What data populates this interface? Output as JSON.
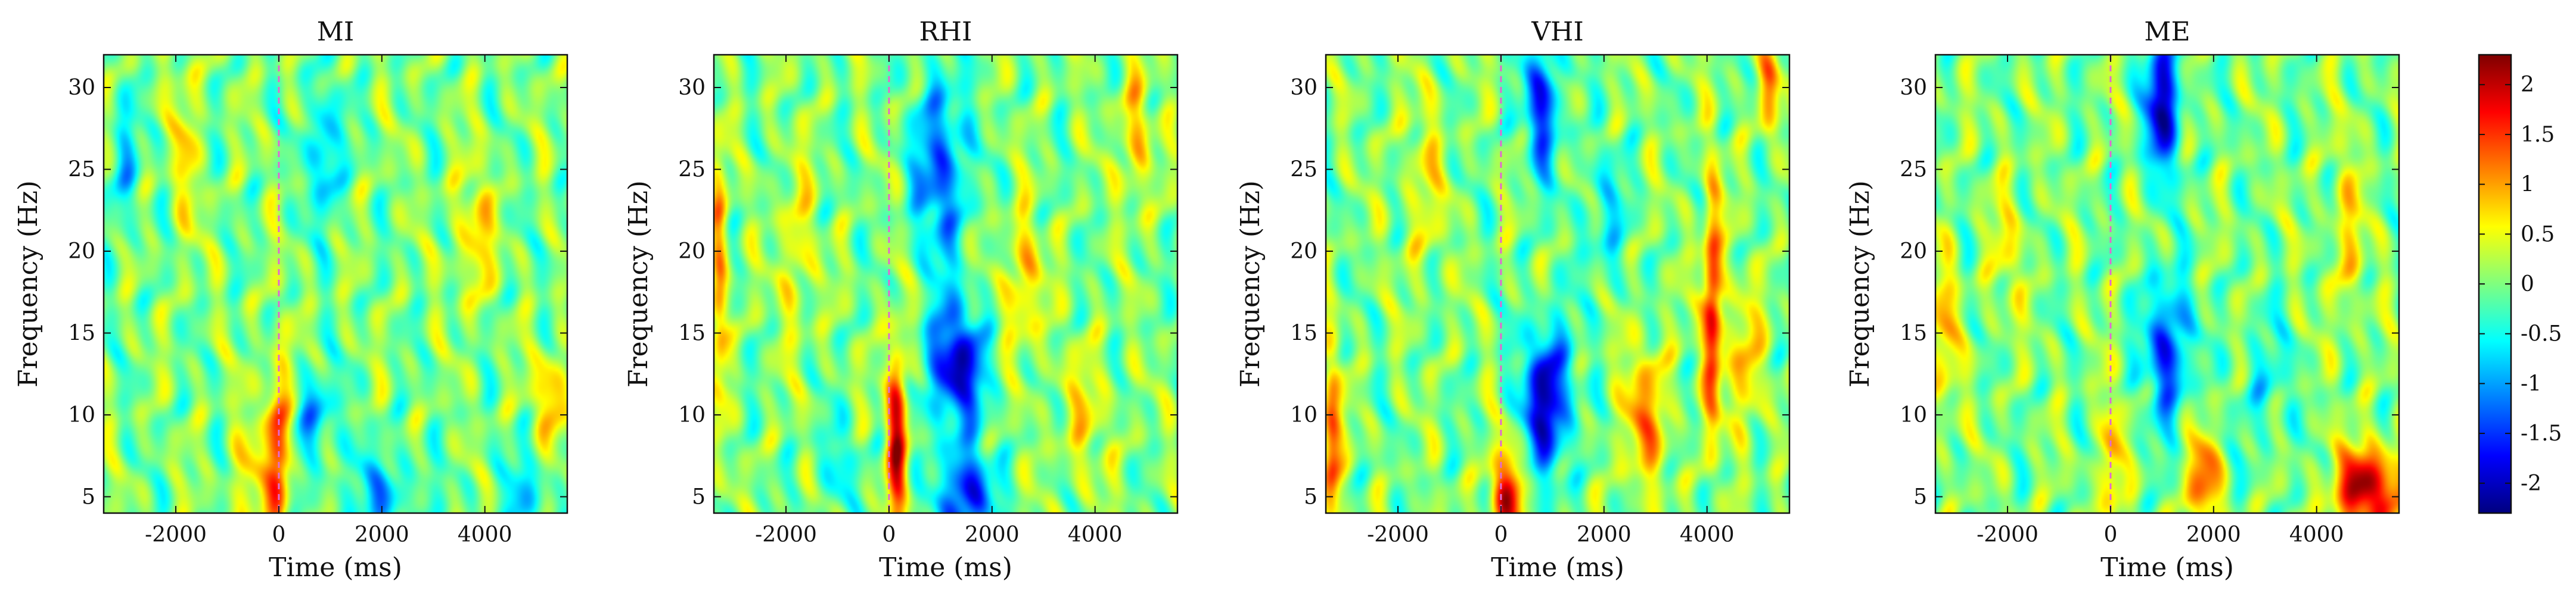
{
  "chart_data": [
    {
      "type": "heatmap",
      "title": "MI",
      "xlabel": "Time (ms)",
      "ylabel": "Frequency (Hz)",
      "xlim": [
        -3400,
        5600
      ],
      "ylim": [
        4,
        32
      ],
      "xticks": [
        -2000,
        0,
        2000,
        4000
      ],
      "xtick_labels": [
        "-2000",
        "0",
        "2000",
        "4000"
      ],
      "yticks": [
        5,
        10,
        15,
        20,
        25,
        30
      ],
      "ytick_labels": [
        "5",
        "10",
        "15",
        "20",
        "25",
        "30"
      ],
      "event_marker_time": 0,
      "features": [
        {
          "t": 0,
          "f": 8,
          "v": 1.6,
          "st": 160,
          "sf": 4
        },
        {
          "t": -600,
          "f": 6,
          "v": 0.6,
          "st": 250,
          "sf": 3
        },
        {
          "t": 900,
          "f": 26,
          "v": -1.1,
          "st": 200,
          "sf": 3
        },
        {
          "t": 700,
          "f": 10,
          "v": -0.9,
          "st": 300,
          "sf": 2
        },
        {
          "t": 2000,
          "f": 5,
          "v": -0.8,
          "st": 500,
          "sf": 2
        },
        {
          "t": 3800,
          "f": 21,
          "v": 0.8,
          "st": 250,
          "sf": 3
        },
        {
          "t": 5300,
          "f": 11,
          "v": 0.9,
          "st": 250,
          "sf": 2
        },
        {
          "t": -1800,
          "f": 26,
          "v": 0.6,
          "st": 200,
          "sf": 4
        },
        {
          "t": -3000,
          "f": 25,
          "v": -0.7,
          "st": 200,
          "sf": 3
        },
        {
          "t": 4800,
          "f": 5,
          "v": -0.6,
          "st": 400,
          "sf": 2
        }
      ]
    },
    {
      "type": "heatmap",
      "title": "RHI",
      "xlabel": "Time (ms)",
      "ylabel": "Frequency (Hz)",
      "xlim": [
        -3400,
        5600
      ],
      "ylim": [
        4,
        32
      ],
      "xticks": [
        -2000,
        0,
        2000,
        4000
      ],
      "xtick_labels": [
        "-2000",
        "0",
        "2000",
        "4000"
      ],
      "yticks": [
        5,
        10,
        15,
        20,
        25,
        30
      ],
      "ytick_labels": [
        "5",
        "10",
        "15",
        "20",
        "25",
        "30"
      ],
      "event_marker_time": 0,
      "features": [
        {
          "t": 150,
          "f": 9,
          "v": 2.0,
          "st": 140,
          "sf": 4
        },
        {
          "t": 1300,
          "f": 13,
          "v": -2.0,
          "st": 400,
          "sf": 2.5
        },
        {
          "t": 1500,
          "f": 5,
          "v": -1.8,
          "st": 350,
          "sf": 2
        },
        {
          "t": 1000,
          "f": 25,
          "v": -1.4,
          "st": 350,
          "sf": 4
        },
        {
          "t": 2600,
          "f": 18,
          "v": 0.9,
          "st": 250,
          "sf": 3
        },
        {
          "t": 3800,
          "f": 10,
          "v": 0.5,
          "st": 400,
          "sf": 3
        },
        {
          "t": -3300,
          "f": 18,
          "v": 1.2,
          "st": 120,
          "sf": 5
        },
        {
          "t": 4800,
          "f": 27,
          "v": 0.9,
          "st": 200,
          "sf": 3
        },
        {
          "t": -1800,
          "f": 20,
          "v": 0.6,
          "st": 250,
          "sf": 4
        },
        {
          "t": -1000,
          "f": 7,
          "v": -0.5,
          "st": 300,
          "sf": 2
        }
      ]
    },
    {
      "type": "heatmap",
      "title": "VHI",
      "xlabel": "Time (ms)",
      "ylabel": "Frequency (Hz)",
      "xlim": [
        -3400,
        5600
      ],
      "ylim": [
        4,
        32
      ],
      "xticks": [
        -2000,
        0,
        2000,
        4000
      ],
      "xtick_labels": [
        "-2000",
        "0",
        "2000",
        "4000"
      ],
      "yticks": [
        5,
        10,
        15,
        20,
        25,
        30
      ],
      "ytick_labels": [
        "5",
        "10",
        "15",
        "20",
        "25",
        "30"
      ],
      "event_marker_time": 0,
      "features": [
        {
          "t": 900,
          "f": 11,
          "v": -2.1,
          "st": 330,
          "sf": 3
        },
        {
          "t": 800,
          "f": 29,
          "v": -1.5,
          "st": 250,
          "sf": 3
        },
        {
          "t": 100,
          "f": 5,
          "v": 1.8,
          "st": 220,
          "sf": 2
        },
        {
          "t": 4100,
          "f": 17,
          "v": 1.8,
          "st": 130,
          "sf": 5
        },
        {
          "t": 2800,
          "f": 10,
          "v": 1.0,
          "st": 350,
          "sf": 3
        },
        {
          "t": -3300,
          "f": 8,
          "v": 1.5,
          "st": 130,
          "sf": 4
        },
        {
          "t": 4700,
          "f": 13,
          "v": 0.9,
          "st": 250,
          "sf": 3
        },
        {
          "t": 5200,
          "f": 30,
          "v": 1.1,
          "st": 150,
          "sf": 2
        },
        {
          "t": -1500,
          "f": 24,
          "v": 0.5,
          "st": 300,
          "sf": 4
        },
        {
          "t": 2000,
          "f": 22,
          "v": -0.6,
          "st": 300,
          "sf": 3
        }
      ]
    },
    {
      "type": "heatmap",
      "title": "ME",
      "xlabel": "Time (ms)",
      "ylabel": "Frequency (Hz)",
      "xlim": [
        -3400,
        5600
      ],
      "ylim": [
        4,
        32
      ],
      "xticks": [
        -2000,
        0,
        2000,
        4000
      ],
      "xtick_labels": [
        "-2000",
        "0",
        "2000",
        "4000"
      ],
      "yticks": [
        5,
        10,
        15,
        20,
        25,
        30
      ],
      "ytick_labels": [
        "5",
        "10",
        "15",
        "20",
        "25",
        "30"
      ],
      "event_marker_time": 0,
      "features": [
        {
          "t": 5000,
          "f": 5.5,
          "v": 2.2,
          "st": 450,
          "sf": 1.8
        },
        {
          "t": 1800,
          "f": 6,
          "v": 1.4,
          "st": 220,
          "sf": 2
        },
        {
          "t": 0,
          "f": 7,
          "v": 1.0,
          "st": 150,
          "sf": 3
        },
        {
          "t": 1000,
          "f": 29,
          "v": -2.0,
          "st": 250,
          "sf": 3
        },
        {
          "t": 1100,
          "f": 14,
          "v": -1.6,
          "st": 300,
          "sf": 3
        },
        {
          "t": -3200,
          "f": 15,
          "v": 0.8,
          "st": 180,
          "sf": 4
        },
        {
          "t": 4600,
          "f": 21,
          "v": 0.6,
          "st": 250,
          "sf": 4
        },
        {
          "t": -2000,
          "f": 20,
          "v": 0.5,
          "st": 250,
          "sf": 3
        },
        {
          "t": 3000,
          "f": 12,
          "v": -0.5,
          "st": 350,
          "sf": 3
        }
      ]
    }
  ],
  "colorbar": {
    "min": -2.3,
    "max": 2.3,
    "ticks": [
      -2,
      -1.5,
      -1,
      -0.5,
      0,
      0.5,
      1,
      1.5,
      2
    ],
    "tick_labels": [
      "-2",
      "-1.5",
      "-1",
      "-0.5",
      "0",
      "0.5",
      "1",
      "1.5",
      "2"
    ],
    "colormap": "jet",
    "colormap_stops": [
      "#00007f",
      "#0000ff",
      "#007fff",
      "#00ffff",
      "#7fff7f",
      "#ffff00",
      "#ff7f00",
      "#ff0000",
      "#7f0000"
    ]
  },
  "colors": {
    "event_marker": "#e06ad0",
    "frame": "#111111"
  }
}
